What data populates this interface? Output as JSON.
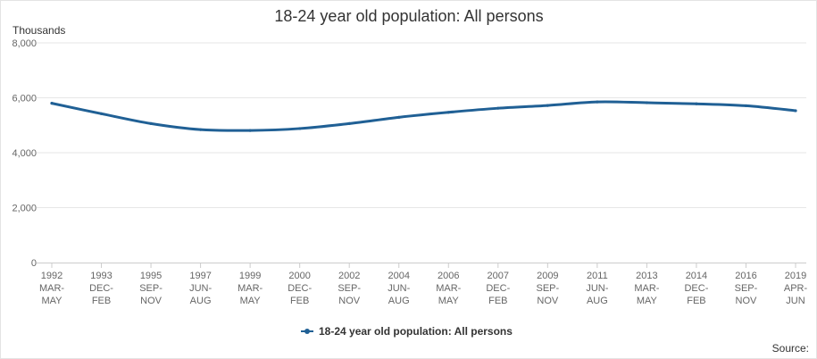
{
  "chart_data": {
    "type": "line",
    "title": "18-24 year old population: All persons",
    "unit_label": "Thousands",
    "ylabel": "",
    "xlabel": "",
    "ylim": [
      0,
      8000
    ],
    "yticks": [
      0,
      2000,
      4000,
      6000,
      8000
    ],
    "ytick_labels": [
      "0",
      "2,000",
      "4,000",
      "6,000",
      "8,000"
    ],
    "grid": "horizontal",
    "legend_position": "bottom-center",
    "source_label": "Source:",
    "colors": {
      "series": "#206095",
      "grid": "#e6e6e6",
      "axis": "#cccccc"
    },
    "x_ticks": [
      {
        "year": "1992",
        "months": [
          "MAR-",
          "MAY"
        ]
      },
      {
        "year": "1993",
        "months": [
          "DEC-",
          "FEB"
        ]
      },
      {
        "year": "1995",
        "months": [
          "SEP-",
          "NOV"
        ]
      },
      {
        "year": "1997",
        "months": [
          "JUN-",
          "AUG"
        ]
      },
      {
        "year": "1999",
        "months": [
          "MAR-",
          "MAY"
        ]
      },
      {
        "year": "2000",
        "months": [
          "DEC-",
          "FEB"
        ]
      },
      {
        "year": "2002",
        "months": [
          "SEP-",
          "NOV"
        ]
      },
      {
        "year": "2004",
        "months": [
          "JUN-",
          "AUG"
        ]
      },
      {
        "year": "2006",
        "months": [
          "MAR-",
          "MAY"
        ]
      },
      {
        "year": "2007",
        "months": [
          "DEC-",
          "FEB"
        ]
      },
      {
        "year": "2009",
        "months": [
          "SEP-",
          "NOV"
        ]
      },
      {
        "year": "2011",
        "months": [
          "JUN-",
          "AUG"
        ]
      },
      {
        "year": "2013",
        "months": [
          "MAR-",
          "MAY"
        ]
      },
      {
        "year": "2014",
        "months": [
          "DEC-",
          "FEB"
        ]
      },
      {
        "year": "2016",
        "months": [
          "SEP-",
          "NOV"
        ]
      },
      {
        "year": "2019",
        "months": [
          "APR-",
          "JUN"
        ]
      }
    ],
    "series": [
      {
        "name": "18-24 year old population: All persons",
        "x": [
          "1992 MAR-MAY",
          "1993 DEC-FEB",
          "1995 SEP-NOV",
          "1997 JUN-AUG",
          "1999 MAR-MAY",
          "2000 DEC-FEB",
          "2002 SEP-NOV",
          "2004 JUN-AUG",
          "2006 MAR-MAY",
          "2007 DEC-FEB",
          "2009 SEP-NOV",
          "2011 JUN-AUG",
          "2013 MAR-MAY",
          "2014 DEC-FEB",
          "2016 SEP-NOV",
          "2019 APR-JUN"
        ],
        "values": [
          5800,
          5420,
          5060,
          4840,
          4810,
          4880,
          5060,
          5290,
          5470,
          5620,
          5720,
          5850,
          5820,
          5780,
          5710,
          5530
        ]
      }
    ]
  }
}
